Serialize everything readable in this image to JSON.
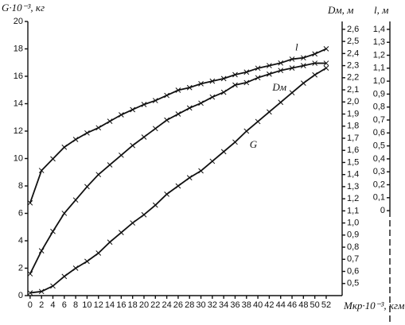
{
  "chart_data": {
    "type": "line",
    "x_label": "Mкр·10⁻³, кгм",
    "y_label": "G·10⁻³, кг",
    "y2_label": "Dм, м",
    "y3_label": "l, м",
    "x": [
      0,
      2,
      4,
      6,
      8,
      10,
      12,
      14,
      16,
      18,
      20,
      22,
      24,
      26,
      28,
      30,
      32,
      34,
      36,
      38,
      40,
      42,
      44,
      46,
      48,
      50,
      52
    ],
    "xlim": [
      -0.4,
      54.8
    ],
    "xticks": [
      0,
      2,
      4,
      6,
      8,
      10,
      12,
      14,
      16,
      18,
      20,
      22,
      24,
      26,
      28,
      30,
      32,
      34,
      36,
      38,
      40,
      42,
      44,
      46,
      48,
      50,
      52
    ],
    "ylim": [
      0,
      20
    ],
    "yticks": [
      0,
      2,
      4,
      6,
      8,
      10,
      12,
      14,
      16,
      18,
      20
    ],
    "y2lim": [
      0.4,
      2.665
    ],
    "y2ticks": [
      {
        "value": 0.5,
        "label": "0,5"
      },
      {
        "value": 0.6,
        "label": "0,6"
      },
      {
        "value": 0.7,
        "label": "0,7"
      },
      {
        "value": 0.8,
        "label": "0,8"
      },
      {
        "value": 0.9,
        "label": "0,9"
      },
      {
        "value": 1.0,
        "label": "1,0"
      },
      {
        "value": 1.1,
        "label": "1,1"
      },
      {
        "value": 1.2,
        "label": "1,2"
      },
      {
        "value": 1.3,
        "label": "1,3"
      },
      {
        "value": 1.4,
        "label": "1,4"
      },
      {
        "value": 1.5,
        "label": "1,5"
      },
      {
        "value": 1.6,
        "label": "1,6"
      },
      {
        "value": 1.7,
        "label": "1,7"
      },
      {
        "value": 1.8,
        "label": "1,8"
      },
      {
        "value": 1.9,
        "label": "1,9"
      },
      {
        "value": 2.0,
        "label": "2,0"
      },
      {
        "value": 2.1,
        "label": "2,1"
      },
      {
        "value": 2.2,
        "label": "2,2"
      },
      {
        "value": 2.3,
        "label": "2,3"
      },
      {
        "value": 2.4,
        "label": "2,4"
      },
      {
        "value": 2.5,
        "label": "2,5"
      },
      {
        "value": 2.6,
        "label": "2,6"
      }
    ],
    "y3lim": [
      -0.656,
      1.461
    ],
    "y3ticks": [
      0,
      {
        "value": 0.1,
        "label": "0,1"
      },
      {
        "value": 0.2,
        "label": "0,2"
      },
      {
        "value": 0.3,
        "label": "0,3"
      },
      {
        "value": 0.4,
        "label": "0,4"
      },
      {
        "value": 0.5,
        "label": "0,5"
      },
      {
        "value": 0.6,
        "label": "0,6"
      },
      {
        "value": 0.7,
        "label": "0,7"
      },
      {
        "value": 0.8,
        "label": "0,8"
      },
      {
        "value": 0.9,
        "label": "0,9"
      },
      {
        "value": 1.0,
        "label": "1,0"
      },
      {
        "value": 1.1,
        "label": "1,1"
      },
      {
        "value": 1.2,
        "label": "1,2"
      },
      {
        "value": 1.3,
        "label": "1,3"
      },
      {
        "value": 1.4,
        "label": "1,4"
      }
    ],
    "series": [
      {
        "name": "l",
        "color": "#111111",
        "axis": "y3",
        "values": [
          0.06,
          0.31,
          0.4,
          0.49,
          0.55,
          0.6,
          0.64,
          0.69,
          0.74,
          0.78,
          0.82,
          0.85,
          0.89,
          0.93,
          0.95,
          0.98,
          1.0,
          1.02,
          1.05,
          1.07,
          1.1,
          1.12,
          1.14,
          1.17,
          1.18,
          1.21,
          1.25
        ]
      },
      {
        "name": "Dм",
        "color": "#111111",
        "axis": "y2",
        "values": [
          0.58,
          0.77,
          0.93,
          1.08,
          1.19,
          1.3,
          1.4,
          1.48,
          1.56,
          1.64,
          1.71,
          1.78,
          1.85,
          1.9,
          1.95,
          1.99,
          2.04,
          2.08,
          2.14,
          2.16,
          2.2,
          2.23,
          2.26,
          2.28,
          2.3,
          2.32,
          2.32
        ]
      },
      {
        "name": "G",
        "color": "#111111",
        "axis": "y",
        "values": [
          0.2,
          0.3,
          0.7,
          1.4,
          2.0,
          2.5,
          3.1,
          3.9,
          4.6,
          5.3,
          5.9,
          6.6,
          7.4,
          8.0,
          8.6,
          9.1,
          9.8,
          10.5,
          11.2,
          12.0,
          12.7,
          13.4,
          14.1,
          14.8,
          15.5,
          16.1,
          16.6
        ]
      }
    ]
  }
}
